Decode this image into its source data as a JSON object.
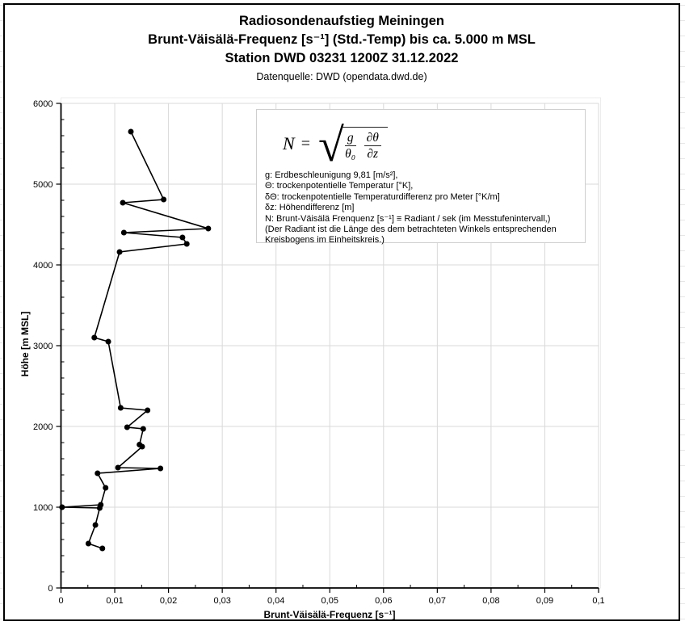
{
  "header": {
    "title_line1": "Radiosondenaufstieg Meiningen",
    "title_line2": "Brunt-Väisälä-Frequenz [s⁻¹] (Std.-Temp) bis ca. 5.000 m MSL",
    "title_line3": "Station DWD 03231 1200Z 31.12.2022",
    "subtitle": "Datenquelle: DWD (opendata.dwd.de)"
  },
  "formula": {
    "lhs": "N",
    "relation": "=",
    "radical": "√",
    "frac1_num": "g",
    "frac1_den": "θ₀",
    "frac2_num": "∂θ",
    "frac2_den": "∂z"
  },
  "infobox": {
    "lines": [
      "g: Erdbeschleunigung 9,81 [m/s²],",
      "Θ: trockenpotentielle Temperatur [°K],",
      "δΘ: trockenpotentielle Temperaturdifferenz pro Meter [°K/m]",
      "δz: Höhendifferenz [m]",
      "N: Brunt-Väisälä Frenquenz [s⁻¹] ≡ Radiant / sek (im Messtufenintervall,)",
      "(Der Radiant ist die Länge des dem betrachteten Winkels entsprechenden Kreisbogens im Einheitskreis.)"
    ]
  },
  "chart_data": {
    "type": "line",
    "title": "Radiosondenaufstieg Meiningen — Brunt-Väisälä-Frequenz (Std.-Temp) bis ca. 5.000 m MSL",
    "xlabel": "Brunt-Väisälä-Frequenz [s⁻¹]",
    "ylabel": "Höhe [m MSL]",
    "xlim": [
      0,
      0.1
    ],
    "ylim": [
      0,
      6000
    ],
    "x_ticks": {
      "values": [
        0,
        0.01,
        0.02,
        0.03,
        0.04,
        0.05,
        0.06,
        0.07,
        0.08,
        0.09,
        0.1
      ],
      "labels": [
        "0",
        "0,01",
        "0,02",
        "0,03",
        "0,04",
        "0,05",
        "0,06",
        "0,07",
        "0,08",
        "0,09",
        "0,1"
      ]
    },
    "y_ticks": {
      "values": [
        0,
        1000,
        2000,
        3000,
        4000,
        5000,
        6000
      ],
      "labels": [
        "0",
        "1000",
        "2000",
        "3000",
        "4000",
        "5000",
        "6000"
      ]
    },
    "x_minor_step": 0.005,
    "y_minor_step": 200,
    "grid": "major",
    "legend": "none",
    "marker": "circle",
    "color": "#000000",
    "gridline_color": "#d9d9d9",
    "series": [
      {
        "name": "N (Std.-Temp)",
        "x_is": "frequency [1/s]",
        "y_is": "height [m MSL]",
        "points": [
          [
            0.0077,
            490
          ],
          [
            0.0051,
            550
          ],
          [
            0.0064,
            780
          ],
          [
            0.0072,
            990
          ],
          [
            0.0002,
            1000
          ],
          [
            0.0074,
            1030
          ],
          [
            0.0083,
            1240
          ],
          [
            0.0068,
            1420
          ],
          [
            0.0185,
            1480
          ],
          [
            0.0106,
            1490
          ],
          [
            0.0151,
            1750
          ],
          [
            0.0146,
            1775
          ],
          [
            0.0153,
            1970
          ],
          [
            0.0123,
            1990
          ],
          [
            0.0161,
            2200
          ],
          [
            0.0111,
            2230
          ],
          [
            0.0088,
            3050
          ],
          [
            0.0062,
            3100
          ],
          [
            0.0109,
            4160
          ],
          [
            0.0234,
            4260
          ],
          [
            0.0226,
            4340
          ],
          [
            0.0117,
            4400
          ],
          [
            0.0274,
            4450
          ],
          [
            0.0115,
            4770
          ],
          [
            0.0191,
            4810
          ],
          [
            0.013,
            5650
          ]
        ]
      }
    ]
  }
}
